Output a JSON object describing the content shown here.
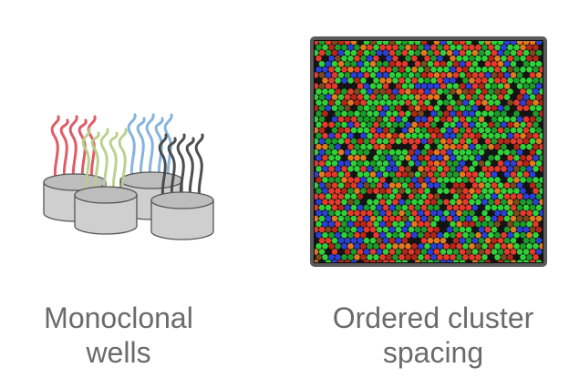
{
  "captions": {
    "left": {
      "line1": "Monoclonal",
      "line2": "wells"
    },
    "right": {
      "line1": "Ordered cluster",
      "line2": "spacing"
    }
  },
  "colors": {
    "strand_red": "#e0525c",
    "strand_green": "#b7cf8a",
    "strand_blue": "#7fb0dc",
    "strand_black": "#444444",
    "well_fill": "#cfcfcf",
    "well_top": "#bdbdbd",
    "well_stroke": "#555555",
    "cluster_border": "#5a5a5a",
    "cluster_palette": [
      "#2fd03a",
      "#1d9a2c",
      "#e33a2c",
      "#b32718",
      "#2a3fd4",
      "#e07a1f",
      "#151515",
      "#7a4a1e"
    ],
    "caption_text": "#6b6b6b"
  },
  "icons": [
    "monoclonal-wells-illustration",
    "ordered-cluster-grid-image"
  ]
}
